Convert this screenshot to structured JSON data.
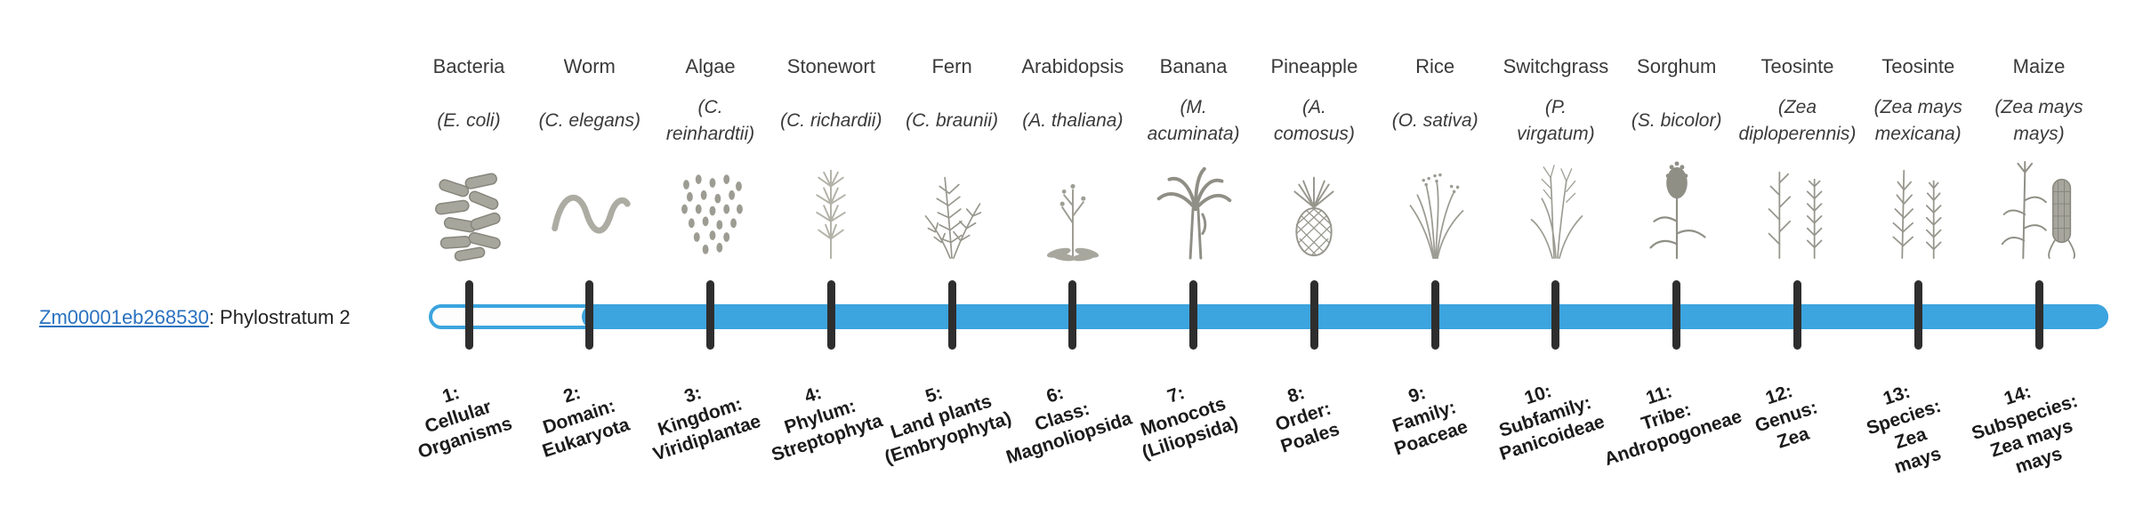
{
  "gene": {
    "id": "Zm00001eb268530",
    "annotation": ": Phylostratum 2"
  },
  "bar": {
    "fill_start_phylostratum": 2,
    "fill_end_phylostratum": 14,
    "total_phylostrata": 14
  },
  "colors": {
    "bar_blue": "#3ca4de",
    "tick_dark": "#2e2e2e",
    "link_blue": "#2a72c0",
    "label_text": "#3a3a3a",
    "ps_label_text": "#1b1b1b"
  },
  "organisms": [
    {
      "ps": 1,
      "name": "Bacteria",
      "sci": "(E. coli)",
      "icon": "bacteria-icon",
      "label": "1:\nCellular\nOrganisms"
    },
    {
      "ps": 2,
      "name": "Worm",
      "sci": "(C. elegans)",
      "icon": "worm-icon",
      "label": "2:\nDomain:\nEukaryota"
    },
    {
      "ps": 3,
      "name": "Algae",
      "sci": "(C.\nreinhardtii)",
      "icon": "algae-icon",
      "label": "3:\nKingdom:\nViridiplantae"
    },
    {
      "ps": 4,
      "name": "Stonewort",
      "sci": "(C. richardii)",
      "icon": "stonewort-icon",
      "label": "4:\nPhylum:\nStreptophyta"
    },
    {
      "ps": 5,
      "name": "Fern",
      "sci": "(C. braunii)",
      "icon": "fern-icon",
      "label": "5:\nLand plants\n(Embryophyta)"
    },
    {
      "ps": 6,
      "name": "Arabidopsis",
      "sci": "(A. thaliana)",
      "icon": "arabidopsis-icon",
      "label": "6:\nClass:\nMagnoliopsida"
    },
    {
      "ps": 7,
      "name": "Banana",
      "sci": "(M.\nacuminata)",
      "icon": "banana-icon",
      "label": "7:\nMonocots\n(Liliopsida)"
    },
    {
      "ps": 8,
      "name": "Pineapple",
      "sci": "(A.\ncomosus)",
      "icon": "pineapple-icon",
      "label": "8:\nOrder:\nPoales"
    },
    {
      "ps": 9,
      "name": "Rice",
      "sci": "(O. sativa)",
      "icon": "rice-icon",
      "label": "9:\nFamily:\nPoaceae"
    },
    {
      "ps": 10,
      "name": "Switchgrass",
      "sci": "(P.\nvirgatum)",
      "icon": "switchgrass-icon",
      "label": "10:\nSubfamily:\nPanicoideae"
    },
    {
      "ps": 11,
      "name": "Sorghum",
      "sci": "(S. bicolor)",
      "icon": "sorghum-icon",
      "label": "11:\nTribe:\nAndropogoneae"
    },
    {
      "ps": 12,
      "name": "Teosinte",
      "sci": "(Zea\ndiploperennis)",
      "icon": "teosinte-diploperennis-icon",
      "label": "12:\nGenus:\nZea"
    },
    {
      "ps": 13,
      "name": "Teosinte",
      "sci": "(Zea mays\nmexicana)",
      "icon": "teosinte-mexicana-icon",
      "label": "13:\nSpecies:\nZea\nmays"
    },
    {
      "ps": 14,
      "name": "Maize",
      "sci": "(Zea mays\nmays)",
      "icon": "maize-icon",
      "label": "14:\nSubspecies:\nZea mays\nmays"
    }
  ]
}
